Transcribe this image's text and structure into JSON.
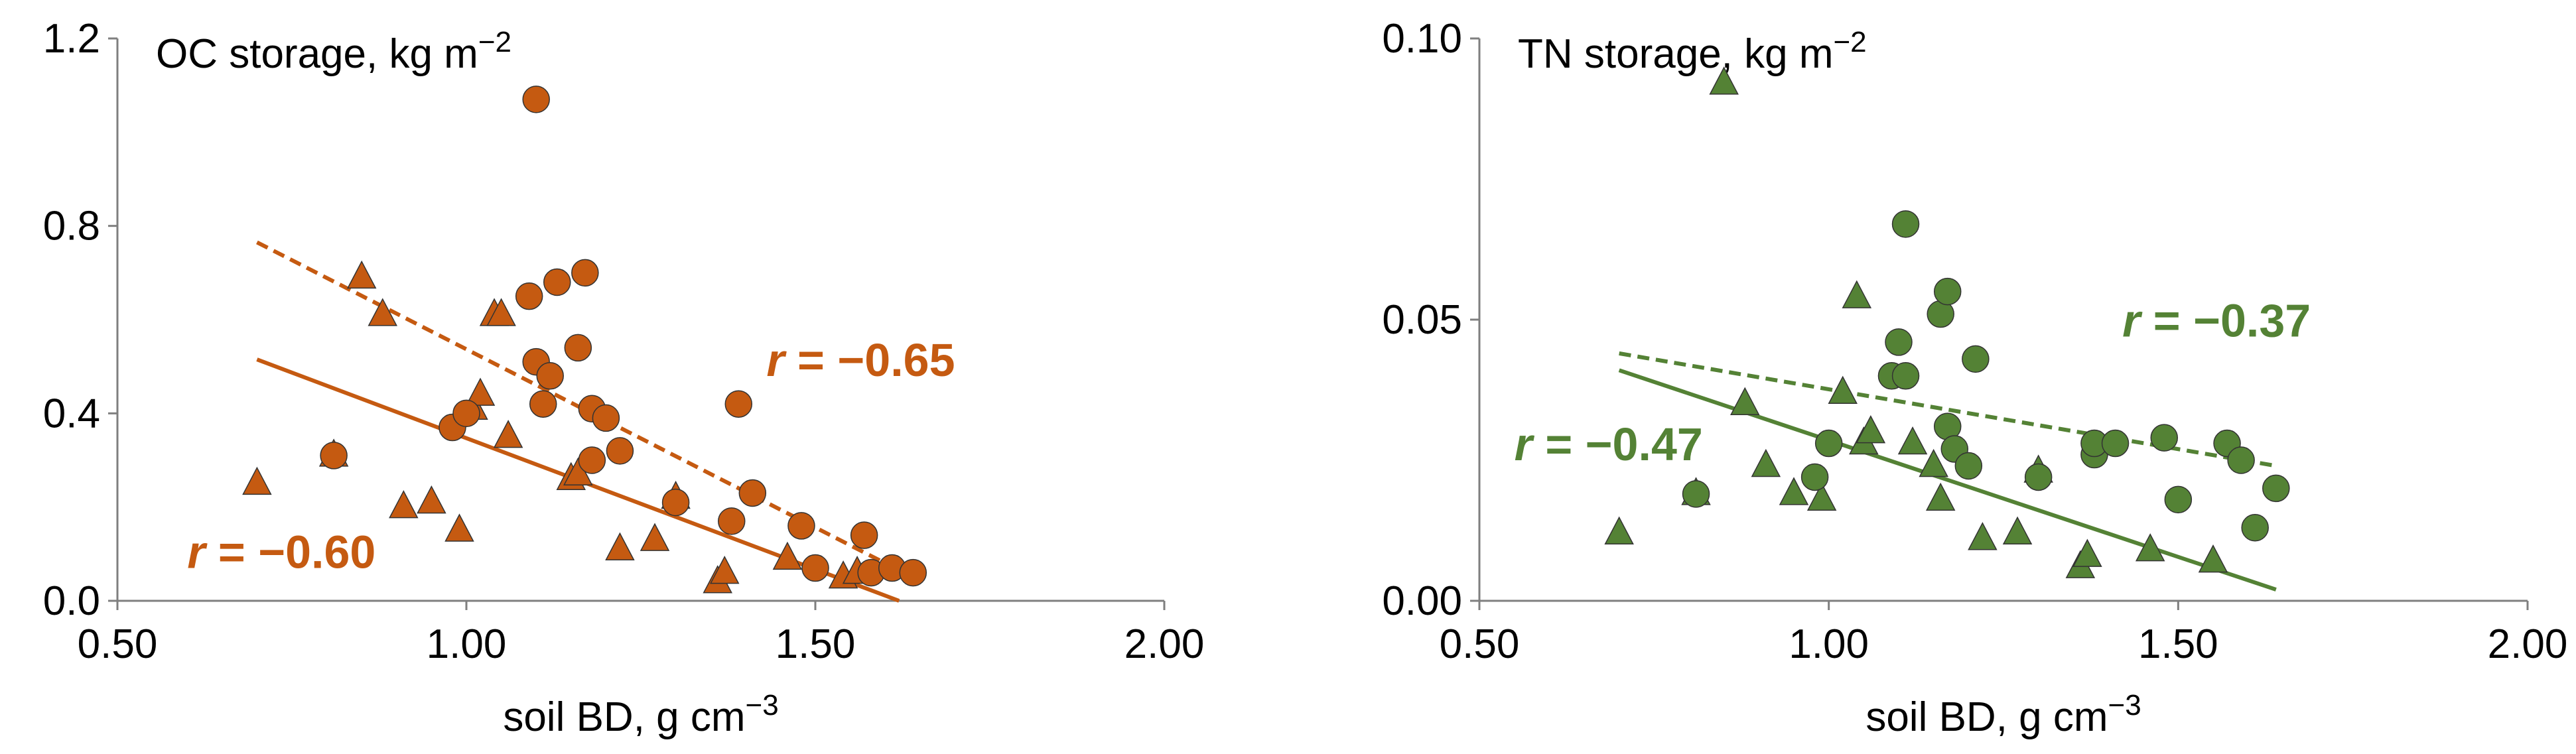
{
  "colors": {
    "oc": "#c55a11",
    "tn": "#548235",
    "axis": "#7f7f7f",
    "text": "#000000",
    "marker_edge": "#333333"
  },
  "chart_data": [
    {
      "type": "scatter",
      "title": "OC storage, kg m",
      "title_sup": "−2",
      "xlabel": "soil BD, g cm",
      "xlabel_sup": "−3",
      "xlim": [
        0.5,
        2.0
      ],
      "ylim": [
        0.0,
        1.2
      ],
      "xticks": [
        0.5,
        1.0,
        1.5,
        2.0
      ],
      "xtick_labels": [
        "0.50",
        "1.00",
        "1.50",
        "2.00"
      ],
      "yticks": [
        0.0,
        0.4,
        0.8,
        1.2
      ],
      "ytick_labels": [
        "0.0",
        "0.4",
        "0.8",
        "1.2"
      ],
      "grid": false,
      "color": "#c55a11",
      "series": [
        {
          "marker": "triangle",
          "points": [
            [
              0.7,
              0.25
            ],
            [
              0.81,
              0.31
            ],
            [
              0.85,
              0.69
            ],
            [
              0.88,
              0.61
            ],
            [
              0.91,
              0.2
            ],
            [
              0.95,
              0.21
            ],
            [
              0.99,
              0.15
            ],
            [
              1.01,
              0.41
            ],
            [
              1.02,
              0.44
            ],
            [
              1.04,
              0.61
            ],
            [
              1.05,
              0.61
            ],
            [
              1.06,
              0.35
            ],
            [
              1.15,
              0.26
            ],
            [
              1.16,
              0.27
            ],
            [
              1.22,
              0.11
            ],
            [
              1.27,
              0.13
            ],
            [
              1.3,
              0.22
            ],
            [
              1.36,
              0.04
            ],
            [
              1.37,
              0.06
            ],
            [
              1.46,
              0.09
            ],
            [
              1.54,
              0.05
            ],
            [
              1.56,
              0.06
            ]
          ]
        },
        {
          "marker": "circle",
          "points": [
            [
              0.81,
              0.31
            ],
            [
              0.98,
              0.37
            ],
            [
              1.0,
              0.4
            ],
            [
              1.09,
              0.65
            ],
            [
              1.1,
              0.51
            ],
            [
              1.1,
              1.07
            ],
            [
              1.11,
              0.42
            ],
            [
              1.12,
              0.48
            ],
            [
              1.13,
              0.68
            ],
            [
              1.16,
              0.54
            ],
            [
              1.17,
              0.7
            ],
            [
              1.18,
              0.41
            ],
            [
              1.18,
              0.3
            ],
            [
              1.2,
              0.39
            ],
            [
              1.22,
              0.32
            ],
            [
              1.3,
              0.21
            ],
            [
              1.38,
              0.17
            ],
            [
              1.39,
              0.42
            ],
            [
              1.41,
              0.23
            ],
            [
              1.48,
              0.16
            ],
            [
              1.5,
              0.07
            ],
            [
              1.57,
              0.14
            ],
            [
              1.58,
              0.06
            ],
            [
              1.61,
              0.07
            ],
            [
              1.64,
              0.06
            ]
          ]
        }
      ],
      "trendlines": [
        {
          "style": "solid",
          "x": [
            0.7,
            1.62
          ],
          "y": [
            0.515,
            0.0
          ]
        },
        {
          "style": "dashed",
          "x": [
            0.7,
            1.64
          ],
          "y": [
            0.765,
            0.05
          ]
        }
      ],
      "annotations": [
        {
          "text": "r = −0.65",
          "x": 1.43,
          "y": 0.48
        },
        {
          "text": "r = −0.60",
          "x": 0.6,
          "y": 0.07
        }
      ]
    },
    {
      "type": "scatter",
      "title": "TN storage, kg m",
      "title_sup": "−2",
      "xlabel": "soil BD, g cm",
      "xlabel_sup": "−3",
      "xlim": [
        0.5,
        2.0
      ],
      "ylim": [
        0.0,
        0.1
      ],
      "xticks": [
        0.5,
        1.0,
        1.5,
        2.0
      ],
      "xtick_labels": [
        "0.50",
        "1.00",
        "1.50",
        "2.00"
      ],
      "yticks": [
        0.0,
        0.05,
        0.1
      ],
      "ytick_labels": [
        "0.00",
        "0.05",
        "0.10"
      ],
      "grid": false,
      "color": "#548235",
      "series": [
        {
          "marker": "triangle",
          "points": [
            [
              0.7,
              0.012
            ],
            [
              0.81,
              0.019
            ],
            [
              0.85,
              0.092
            ],
            [
              0.88,
              0.035
            ],
            [
              0.91,
              0.024
            ],
            [
              0.95,
              0.019
            ],
            [
              0.99,
              0.018
            ],
            [
              1.02,
              0.037
            ],
            [
              1.04,
              0.054
            ],
            [
              1.05,
              0.028
            ],
            [
              1.06,
              0.03
            ],
            [
              1.12,
              0.028
            ],
            [
              1.15,
              0.024
            ],
            [
              1.16,
              0.018
            ],
            [
              1.22,
              0.011
            ],
            [
              1.27,
              0.012
            ],
            [
              1.3,
              0.023
            ],
            [
              1.36,
              0.006
            ],
            [
              1.37,
              0.008
            ],
            [
              1.46,
              0.009
            ],
            [
              1.55,
              0.007
            ]
          ]
        },
        {
          "marker": "circle",
          "points": [
            [
              0.81,
              0.019
            ],
            [
              0.98,
              0.022
            ],
            [
              1.0,
              0.028
            ],
            [
              1.09,
              0.04
            ],
            [
              1.1,
              0.046
            ],
            [
              1.11,
              0.04
            ],
            [
              1.11,
              0.067
            ],
            [
              1.16,
              0.051
            ],
            [
              1.17,
              0.055
            ],
            [
              1.17,
              0.031
            ],
            [
              1.18,
              0.027
            ],
            [
              1.2,
              0.024
            ],
            [
              1.21,
              0.043
            ],
            [
              1.3,
              0.022
            ],
            [
              1.38,
              0.026
            ],
            [
              1.38,
              0.028
            ],
            [
              1.41,
              0.028
            ],
            [
              1.48,
              0.029
            ],
            [
              1.5,
              0.018
            ],
            [
              1.57,
              0.028
            ],
            [
              1.59,
              0.025
            ],
            [
              1.61,
              0.013
            ],
            [
              1.64,
              0.02
            ]
          ]
        }
      ],
      "trendlines": [
        {
          "style": "solid",
          "x": [
            0.7,
            1.64
          ],
          "y": [
            0.041,
            0.002
          ]
        },
        {
          "style": "dashed",
          "x": [
            0.7,
            1.64
          ],
          "y": [
            0.044,
            0.024
          ]
        }
      ],
      "annotations": [
        {
          "text": "r = −0.37",
          "x": 1.42,
          "y": 0.047
        },
        {
          "text": "r = −0.47",
          "x": 0.55,
          "y": 0.025
        }
      ]
    }
  ]
}
